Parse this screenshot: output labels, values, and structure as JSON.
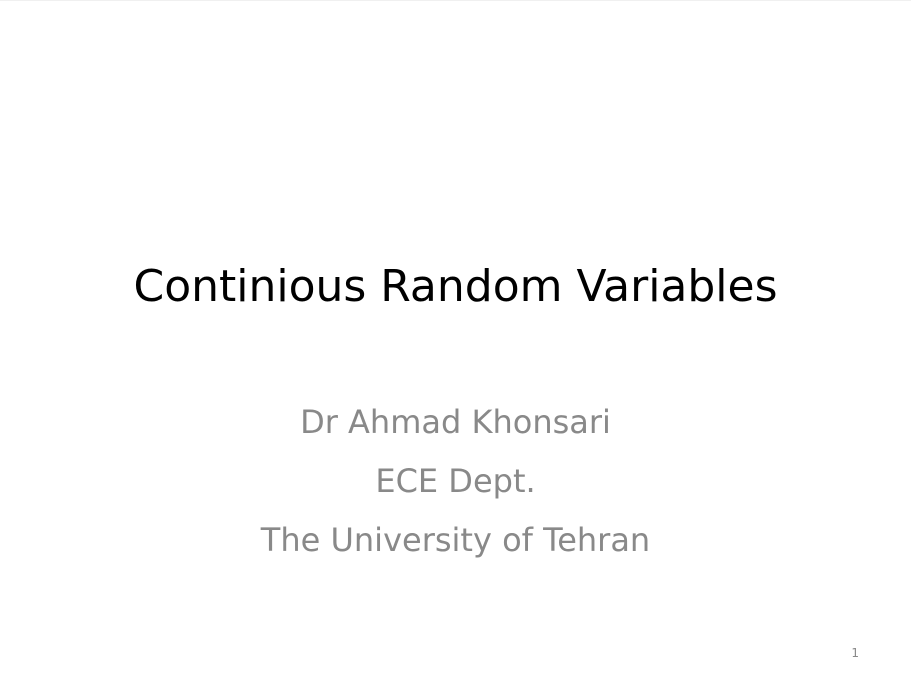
{
  "slide": {
    "title": "Continious Random Variables",
    "subtitle_lines": [
      "Dr Ahmad Khonsari",
      "ECE Dept.",
      "The University of Tehran"
    ],
    "page_number": "1"
  },
  "colors": {
    "background": "#ffffff",
    "title": "#000000",
    "subtitle": "#898989"
  }
}
